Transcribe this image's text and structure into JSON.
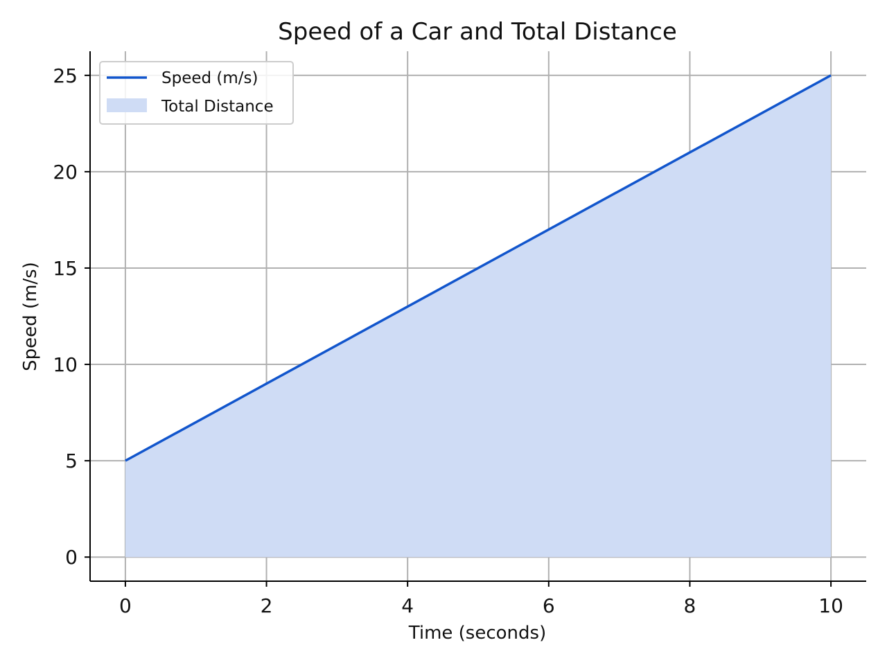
{
  "chart_data": {
    "type": "area",
    "title": "Speed of a Car and Total Distance",
    "xlabel": "Time (seconds)",
    "ylabel": "Speed (m/s)",
    "xlim": [
      -0.5,
      10.5
    ],
    "ylim": [
      -1.25,
      26.25
    ],
    "xticks": [
      0,
      2,
      4,
      6,
      8,
      10
    ],
    "yticks": [
      0,
      5,
      10,
      15,
      20,
      25
    ],
    "grid": true,
    "legend_position": "top-left",
    "series": [
      {
        "name": "Speed (m/s)",
        "kind": "line",
        "color": "#1155cc",
        "x": [
          0,
          10
        ],
        "y": [
          5,
          25
        ]
      },
      {
        "name": "Total Distance",
        "kind": "fill",
        "color": "#cfdcf5",
        "x": [
          0,
          10
        ],
        "y": [
          5,
          25
        ],
        "baseline": 0
      }
    ]
  }
}
